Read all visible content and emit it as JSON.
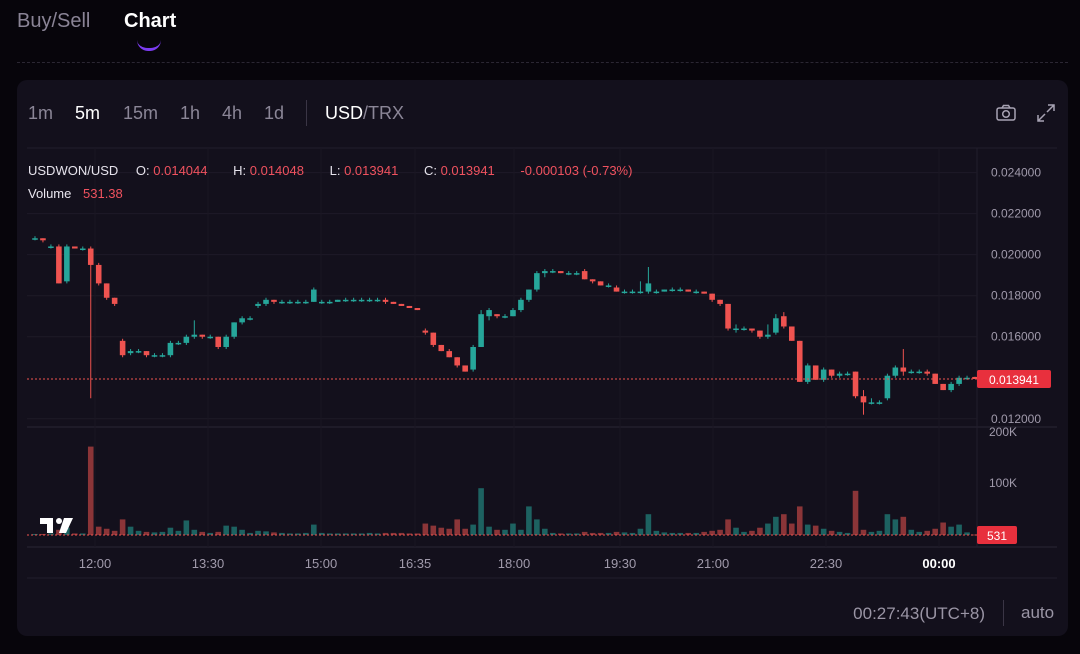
{
  "nav": {
    "tabs": [
      {
        "label": "Buy/Sell"
      },
      {
        "label": "Chart"
      }
    ]
  },
  "toolbar": {
    "intervals": [
      "1m",
      "5m",
      "15m",
      "1h",
      "4h",
      "1d"
    ],
    "active_interval": "5m",
    "pair_base": "USD",
    "pair_quote": "/TRX",
    "icons": [
      "camera-icon",
      "fullscreen-icon"
    ]
  },
  "legend": {
    "symbol": "USDWON/USD",
    "o_label": "O:",
    "o_value": "0.014044",
    "h_label": "H:",
    "h_value": "0.014048",
    "l_label": "L:",
    "l_value": "0.013941",
    "c_label": "C:",
    "c_value": "0.013941",
    "change": "-0.000103 (-0.73%)",
    "volume_label": "Volume",
    "volume_value": "531.38"
  },
  "colors": {
    "up": "#26a69a",
    "down": "#ef5350",
    "accent": "#7b3cf0"
  },
  "footer": {
    "time": "00:27:43(UTC+8)",
    "scale_mode": "auto"
  },
  "chart_data": {
    "type": "candlestick",
    "price_axis": {
      "ticks": [
        "0.024000",
        "0.022000",
        "0.020000",
        "0.018000",
        "0.016000",
        "0.012000"
      ],
      "range": [
        0.0116,
        0.0252
      ]
    },
    "volume_axis": {
      "ticks": [
        "200K",
        "100K"
      ]
    },
    "x_ticks": [
      "12:00",
      "13:30",
      "15:00",
      "16:35",
      "18:00",
      "19:30",
      "21:00",
      "22:30",
      "00:00"
    ],
    "last_price": {
      "value": 0.013941,
      "label": "0.013941"
    },
    "last_volume": {
      "value": 531,
      "label": "531"
    },
    "candles": [
      [
        0.0208,
        0.0209,
        0.0207,
        0.0208,
        2
      ],
      [
        0.0208,
        0.0208,
        0.0206,
        0.0207,
        2
      ],
      [
        0.0204,
        0.0205,
        0.0203,
        0.0204,
        3
      ],
      [
        0.0204,
        0.0205,
        0.0186,
        0.0186,
        10
      ],
      [
        0.0187,
        0.0205,
        0.0186,
        0.0204,
        14
      ],
      [
        0.0204,
        0.0204,
        0.0203,
        0.0203,
        3
      ],
      [
        0.0203,
        0.0204,
        0.0202,
        0.0203,
        3
      ],
      [
        0.0203,
        0.0204,
        0.013,
        0.0195,
        170
      ],
      [
        0.0195,
        0.0196,
        0.0185,
        0.0186,
        16
      ],
      [
        0.0186,
        0.0186,
        0.0178,
        0.0179,
        12
      ],
      [
        0.0179,
        0.0179,
        0.0175,
        0.0176,
        8
      ],
      [
        0.0158,
        0.0159,
        0.015,
        0.0151,
        30
      ],
      [
        0.0152,
        0.0154,
        0.0151,
        0.0153,
        16
      ],
      [
        0.0153,
        0.0154,
        0.0152,
        0.0153,
        8
      ],
      [
        0.0153,
        0.0153,
        0.015,
        0.0151,
        6
      ],
      [
        0.0151,
        0.0152,
        0.015,
        0.0151,
        5
      ],
      [
        0.0151,
        0.0152,
        0.015,
        0.0151,
        6
      ],
      [
        0.0151,
        0.0158,
        0.015,
        0.0157,
        14
      ],
      [
        0.0157,
        0.0158,
        0.0156,
        0.0157,
        8
      ],
      [
        0.0157,
        0.0161,
        0.0156,
        0.016,
        28
      ],
      [
        0.016,
        0.0168,
        0.0159,
        0.0161,
        10
      ],
      [
        0.0161,
        0.0161,
        0.0159,
        0.016,
        6
      ],
      [
        0.016,
        0.0161,
        0.0159,
        0.016,
        4
      ],
      [
        0.016,
        0.016,
        0.0154,
        0.0155,
        6
      ],
      [
        0.0155,
        0.0161,
        0.0154,
        0.016,
        18
      ],
      [
        0.016,
        0.0167,
        0.0159,
        0.0167,
        16
      ],
      [
        0.0167,
        0.017,
        0.0166,
        0.0169,
        10
      ],
      [
        0.0169,
        0.017,
        0.0168,
        0.0169,
        4
      ],
      [
        0.0175,
        0.0177,
        0.0174,
        0.0176,
        8
      ],
      [
        0.0176,
        0.0179,
        0.0175,
        0.0178,
        7
      ],
      [
        0.0178,
        0.0178,
        0.0176,
        0.0177,
        5
      ],
      [
        0.0177,
        0.0178,
        0.0176,
        0.0177,
        4
      ],
      [
        0.0177,
        0.0178,
        0.0176,
        0.0177,
        3
      ],
      [
        0.0177,
        0.0178,
        0.0176,
        0.0177,
        3
      ],
      [
        0.0177,
        0.0178,
        0.0176,
        0.0177,
        4
      ],
      [
        0.0177,
        0.0184,
        0.0177,
        0.0183,
        20
      ],
      [
        0.0177,
        0.0178,
        0.0176,
        0.0177,
        4
      ],
      [
        0.0177,
        0.0178,
        0.0176,
        0.0177,
        3
      ],
      [
        0.0177,
        0.0178,
        0.0177,
        0.0178,
        3
      ],
      [
        0.0178,
        0.0179,
        0.0177,
        0.0178,
        3
      ],
      [
        0.0178,
        0.0179,
        0.0177,
        0.0178,
        3
      ],
      [
        0.0178,
        0.0179,
        0.0177,
        0.0178,
        3
      ],
      [
        0.0178,
        0.0179,
        0.0177,
        0.0178,
        4
      ],
      [
        0.0178,
        0.0179,
        0.0177,
        0.0178,
        3
      ],
      [
        0.0178,
        0.0179,
        0.0176,
        0.0177,
        4
      ],
      [
        0.0177,
        0.0177,
        0.0176,
        0.0176,
        4
      ],
      [
        0.0176,
        0.0176,
        0.0175,
        0.0175,
        4
      ],
      [
        0.0175,
        0.0175,
        0.0174,
        0.0174,
        3
      ],
      [
        0.0174,
        0.0174,
        0.0173,
        0.0173,
        3
      ],
      [
        0.0163,
        0.0164,
        0.0161,
        0.0162,
        22
      ],
      [
        0.0162,
        0.0162,
        0.0155,
        0.0156,
        18
      ],
      [
        0.0156,
        0.0156,
        0.0153,
        0.0153,
        14
      ],
      [
        0.0153,
        0.0154,
        0.015,
        0.015,
        12
      ],
      [
        0.015,
        0.015,
        0.0145,
        0.0146,
        30
      ],
      [
        0.0146,
        0.0146,
        0.0143,
        0.0143,
        12
      ],
      [
        0.0144,
        0.0156,
        0.0143,
        0.0155,
        20
      ],
      [
        0.0155,
        0.0173,
        0.0155,
        0.0171,
        90
      ],
      [
        0.017,
        0.0174,
        0.0168,
        0.0173,
        16
      ],
      [
        0.0171,
        0.0171,
        0.0169,
        0.017,
        10
      ],
      [
        0.017,
        0.0171,
        0.0169,
        0.017,
        10
      ],
      [
        0.017,
        0.0174,
        0.017,
        0.0173,
        22
      ],
      [
        0.0173,
        0.0179,
        0.0172,
        0.0178,
        10
      ],
      [
        0.0178,
        0.0183,
        0.0177,
        0.0183,
        55
      ],
      [
        0.0183,
        0.0192,
        0.0182,
        0.0191,
        30
      ],
      [
        0.0191,
        0.0193,
        0.0189,
        0.0192,
        12
      ],
      [
        0.0192,
        0.0193,
        0.0191,
        0.0192,
        4
      ],
      [
        0.0192,
        0.0192,
        0.0191,
        0.0191,
        3
      ],
      [
        0.0191,
        0.0192,
        0.019,
        0.0191,
        3
      ],
      [
        0.0191,
        0.0192,
        0.019,
        0.0191,
        3
      ],
      [
        0.0192,
        0.0193,
        0.0188,
        0.0188,
        6
      ],
      [
        0.0188,
        0.0188,
        0.0186,
        0.0187,
        4
      ],
      [
        0.0187,
        0.0187,
        0.0185,
        0.0185,
        4
      ],
      [
        0.0185,
        0.0186,
        0.0184,
        0.0185,
        4
      ],
      [
        0.0184,
        0.0185,
        0.0182,
        0.0182,
        6
      ],
      [
        0.0182,
        0.0183,
        0.0181,
        0.0182,
        5
      ],
      [
        0.0182,
        0.0183,
        0.0181,
        0.0182,
        4
      ],
      [
        0.0182,
        0.0187,
        0.0181,
        0.0182,
        12
      ],
      [
        0.0182,
        0.0194,
        0.0181,
        0.0186,
        40
      ],
      [
        0.0182,
        0.0183,
        0.0181,
        0.0182,
        8
      ],
      [
        0.0182,
        0.0183,
        0.0182,
        0.0183,
        5
      ],
      [
        0.0183,
        0.0184,
        0.0182,
        0.0183,
        4
      ],
      [
        0.0183,
        0.0184,
        0.0182,
        0.0183,
        4
      ],
      [
        0.0183,
        0.0183,
        0.0182,
        0.0182,
        4
      ],
      [
        0.0182,
        0.0183,
        0.0181,
        0.0182,
        4
      ],
      [
        0.0182,
        0.0182,
        0.0181,
        0.0181,
        6
      ],
      [
        0.0181,
        0.0181,
        0.0177,
        0.0178,
        8
      ],
      [
        0.0178,
        0.0178,
        0.0175,
        0.0176,
        10
      ],
      [
        0.0176,
        0.0176,
        0.0163,
        0.0164,
        30
      ],
      [
        0.0164,
        0.0166,
        0.0162,
        0.0164,
        14
      ],
      [
        0.0164,
        0.0165,
        0.0163,
        0.0164,
        6
      ],
      [
        0.0164,
        0.0164,
        0.0162,
        0.0163,
        8
      ],
      [
        0.0163,
        0.0163,
        0.0159,
        0.016,
        14
      ],
      [
        0.016,
        0.0166,
        0.0159,
        0.0161,
        22
      ],
      [
        0.0162,
        0.0171,
        0.0161,
        0.0169,
        35
      ],
      [
        0.017,
        0.0172,
        0.0164,
        0.0165,
        40
      ],
      [
        0.0165,
        0.0165,
        0.0158,
        0.0158,
        22
      ],
      [
        0.0158,
        0.0158,
        0.0138,
        0.0138,
        55
      ],
      [
        0.0138,
        0.0147,
        0.0137,
        0.0146,
        20
      ],
      [
        0.0146,
        0.0146,
        0.0139,
        0.0139,
        18
      ],
      [
        0.0139,
        0.0145,
        0.0138,
        0.0144,
        12
      ],
      [
        0.0144,
        0.0144,
        0.014,
        0.0141,
        8
      ],
      [
        0.0141,
        0.0143,
        0.014,
        0.0142,
        6
      ],
      [
        0.0142,
        0.0143,
        0.0141,
        0.0142,
        4
      ],
      [
        0.0143,
        0.0143,
        0.013,
        0.0131,
        85
      ],
      [
        0.0131,
        0.0134,
        0.0122,
        0.0128,
        10
      ],
      [
        0.0128,
        0.013,
        0.0127,
        0.0128,
        6
      ],
      [
        0.0128,
        0.0129,
        0.0127,
        0.0128,
        8
      ],
      [
        0.013,
        0.0142,
        0.0129,
        0.0141,
        40
      ],
      [
        0.0141,
        0.0146,
        0.014,
        0.0145,
        30
      ],
      [
        0.0145,
        0.0154,
        0.0141,
        0.0143,
        35
      ],
      [
        0.0143,
        0.0144,
        0.0142,
        0.0143,
        10
      ],
      [
        0.0143,
        0.0144,
        0.0142,
        0.0143,
        6
      ],
      [
        0.0143,
        0.0144,
        0.0141,
        0.0142,
        8
      ],
      [
        0.0142,
        0.0142,
        0.0137,
        0.0137,
        12
      ],
      [
        0.0137,
        0.0137,
        0.0134,
        0.0134,
        24
      ],
      [
        0.0134,
        0.0138,
        0.0133,
        0.0137,
        16
      ],
      [
        0.0137,
        0.0141,
        0.0136,
        0.014,
        20
      ],
      [
        0.014,
        0.0141,
        0.0139,
        0.014,
        5
      ],
      [
        0.01404,
        0.01405,
        0.01394,
        0.01394,
        1
      ]
    ]
  }
}
